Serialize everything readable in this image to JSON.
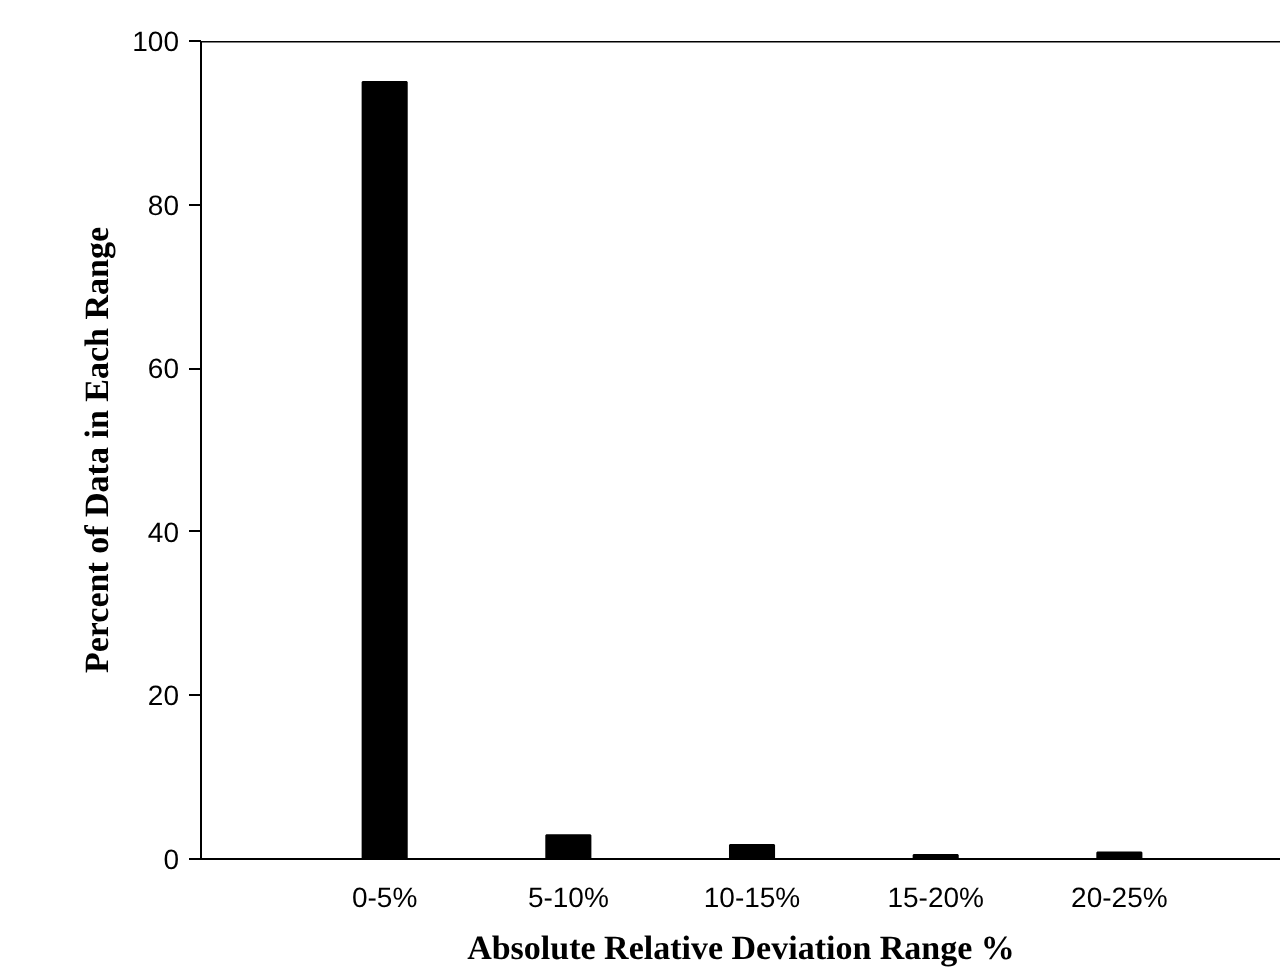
{
  "chart_data": {
    "type": "bar",
    "xlabel": "Absolute Relative Deviation Range %",
    "ylabel": "Percent of Data in Each Range",
    "categories": [
      "0-5%",
      "5-10%",
      "10-15%",
      "15-20%",
      "20-25%"
    ],
    "values": [
      95,
      2.9,
      1.7,
      0.5,
      0.8
    ],
    "color": "#000000",
    "ylim": [
      0,
      100
    ],
    "yticks": [
      0,
      20,
      40,
      60,
      80,
      100
    ],
    "grid": false
  }
}
